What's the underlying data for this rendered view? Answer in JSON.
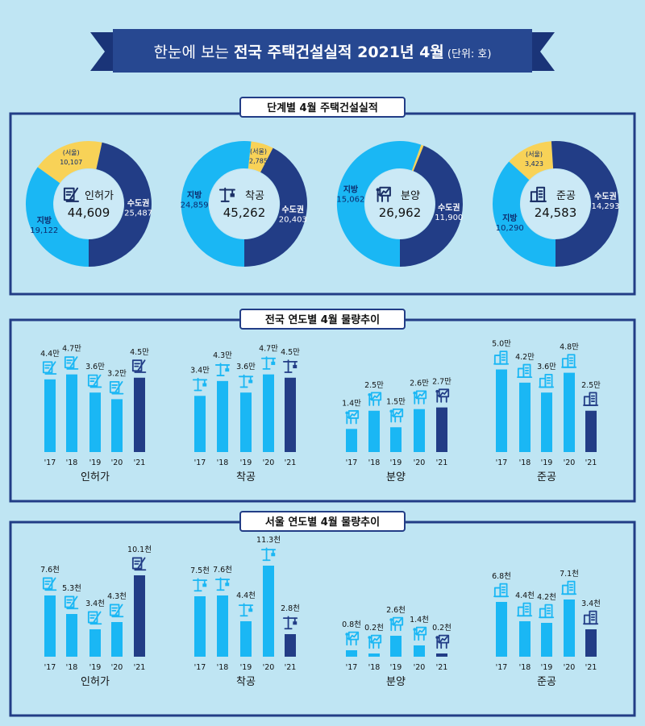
{
  "header": {
    "prefix": "한눈에 보는 ",
    "bold": "전국 주택건설실적 2021년 4월",
    "unit": " (단위: 호)"
  },
  "colors": {
    "navy": "#223d86",
    "light": "#1ab7f4",
    "yellow": "#f8d257",
    "background": "#bfe5f3"
  },
  "sections": {
    "donuts_title": "단계별  4월 주택건설실적",
    "national_title": "전국 연도별 4월  물량추이",
    "seoul_title": "서울 연도별 4월  물량추이"
  },
  "chart_data": [
    {
      "type": "pie",
      "title": "단계별  4월 주택건설실적",
      "donuts": [
        {
          "stage": "인허가",
          "icon": "permit-icon",
          "total": "44,609",
          "slices": [
            {
              "name": "(서울)",
              "value": 10107,
              "label": "10,107",
              "color": "#f8d257"
            },
            {
              "name": "수도권",
              "value": 25487,
              "label": "25,487",
              "color": "#223d86"
            },
            {
              "name": "지방",
              "value": 19122,
              "label": "19,122",
              "color": "#1ab7f4"
            }
          ]
        },
        {
          "stage": "착공",
          "icon": "crane-icon",
          "total": "45,262",
          "slices": [
            {
              "name": "(서울)",
              "value": 2785,
              "label": "2,785",
              "color": "#f8d257"
            },
            {
              "name": "수도권",
              "value": 20403,
              "label": "20,403",
              "color": "#223d86"
            },
            {
              "name": "지방",
              "value": 24859,
              "label": "24,859",
              "color": "#1ab7f4"
            }
          ]
        },
        {
          "stage": "분양",
          "icon": "presentation-icon",
          "total": "26,962",
          "slices": [
            {
              "name": "(서울)",
              "value": 194,
              "label": "194",
              "color": "#f8d257"
            },
            {
              "name": "수도권",
              "value": 11900,
              "label": "11,900",
              "color": "#223d86"
            },
            {
              "name": "지방",
              "value": 15062,
              "label": "15,062",
              "color": "#1ab7f4"
            }
          ]
        },
        {
          "stage": "준공",
          "icon": "building-icon",
          "total": "24,583",
          "slices": [
            {
              "name": "(서울)",
              "value": 3423,
              "label": "3,423",
              "color": "#f8d257"
            },
            {
              "name": "수도권",
              "value": 14293,
              "label": "14,293",
              "color": "#223d86"
            },
            {
              "name": "지방",
              "value": 10290,
              "label": "10,290",
              "color": "#1ab7f4"
            }
          ]
        }
      ]
    },
    {
      "type": "bar",
      "title": "전국 연도별 4월  물량추이",
      "categories": [
        "'17",
        "'18",
        "'19",
        "'20",
        "'21"
      ],
      "groups": [
        {
          "name": "인허가",
          "icon": "permit-icon",
          "values": [
            4.4,
            4.7,
            3.6,
            3.2,
            4.5
          ],
          "labels": [
            "4.4만",
            "4.7만",
            "3.6만",
            "3.2만",
            "4.5만"
          ]
        },
        {
          "name": "착공",
          "icon": "crane-icon",
          "values": [
            3.4,
            4.3,
            3.6,
            4.7,
            4.5
          ],
          "labels": [
            "3.4만",
            "4.3만",
            "3.6만",
            "4.7만",
            "4.5만"
          ]
        },
        {
          "name": "분양",
          "icon": "presentation-icon",
          "values": [
            1.4,
            2.5,
            1.5,
            2.6,
            2.7
          ],
          "labels": [
            "1.4만",
            "2.5만",
            "1.5만",
            "2.6만",
            "2.7만"
          ]
        },
        {
          "name": "준공",
          "icon": "building-icon",
          "values": [
            5.0,
            4.2,
            3.6,
            4.8,
            2.5
          ],
          "labels": [
            "5.0만",
            "4.2만",
            "3.6만",
            "4.8만",
            "2.5만"
          ]
        }
      ],
      "unit": "만"
    },
    {
      "type": "bar",
      "title": "서울 연도별 4월  물량추이",
      "categories": [
        "'17",
        "'18",
        "'19",
        "'20",
        "'21"
      ],
      "groups": [
        {
          "name": "인허가",
          "icon": "permit-icon",
          "values": [
            7.6,
            5.3,
            3.4,
            4.3,
            10.1
          ],
          "labels": [
            "7.6천",
            "5.3천",
            "3.4천",
            "4.3천",
            "10.1천"
          ]
        },
        {
          "name": "착공",
          "icon": "crane-icon",
          "values": [
            7.5,
            7.6,
            4.4,
            11.3,
            2.8
          ],
          "labels": [
            "7.5천",
            "7.6천",
            "4.4천",
            "11.3천",
            "2.8천"
          ]
        },
        {
          "name": "분양",
          "icon": "presentation-icon",
          "values": [
            0.8,
            0.2,
            2.6,
            1.4,
            0.2
          ],
          "labels": [
            "0.8천",
            "0.2천",
            "2.6천",
            "1.4천",
            "0.2천"
          ]
        },
        {
          "name": "준공",
          "icon": "building-icon",
          "values": [
            6.8,
            4.4,
            4.2,
            7.1,
            3.4
          ],
          "labels": [
            "6.8천",
            "4.4천",
            "4.2천",
            "7.1천",
            "3.4천"
          ]
        }
      ],
      "unit": "천"
    }
  ]
}
